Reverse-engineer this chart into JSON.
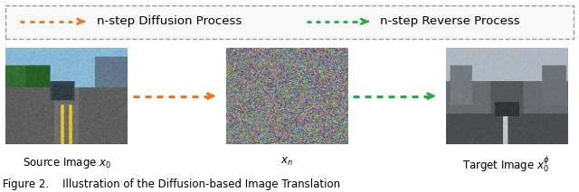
{
  "legend_border_color": "#999999",
  "arrow1_color": "#E87722",
  "arrow2_color": "#22AA44",
  "arrow1_label": "n-step Diffusion Process",
  "arrow2_label": "n-step Reverse Process",
  "label1": "Source Image $x_0$",
  "label2": "$x_n$",
  "label3": "Target Image $x_0^{\\phi}$",
  "caption": "Figure 2.    Illustration of the Diffusion-based Image Translation",
  "bg_color": "#ffffff",
  "label_fontsize": 8.5,
  "caption_fontsize": 8.5,
  "legend_fontsize": 9.5
}
